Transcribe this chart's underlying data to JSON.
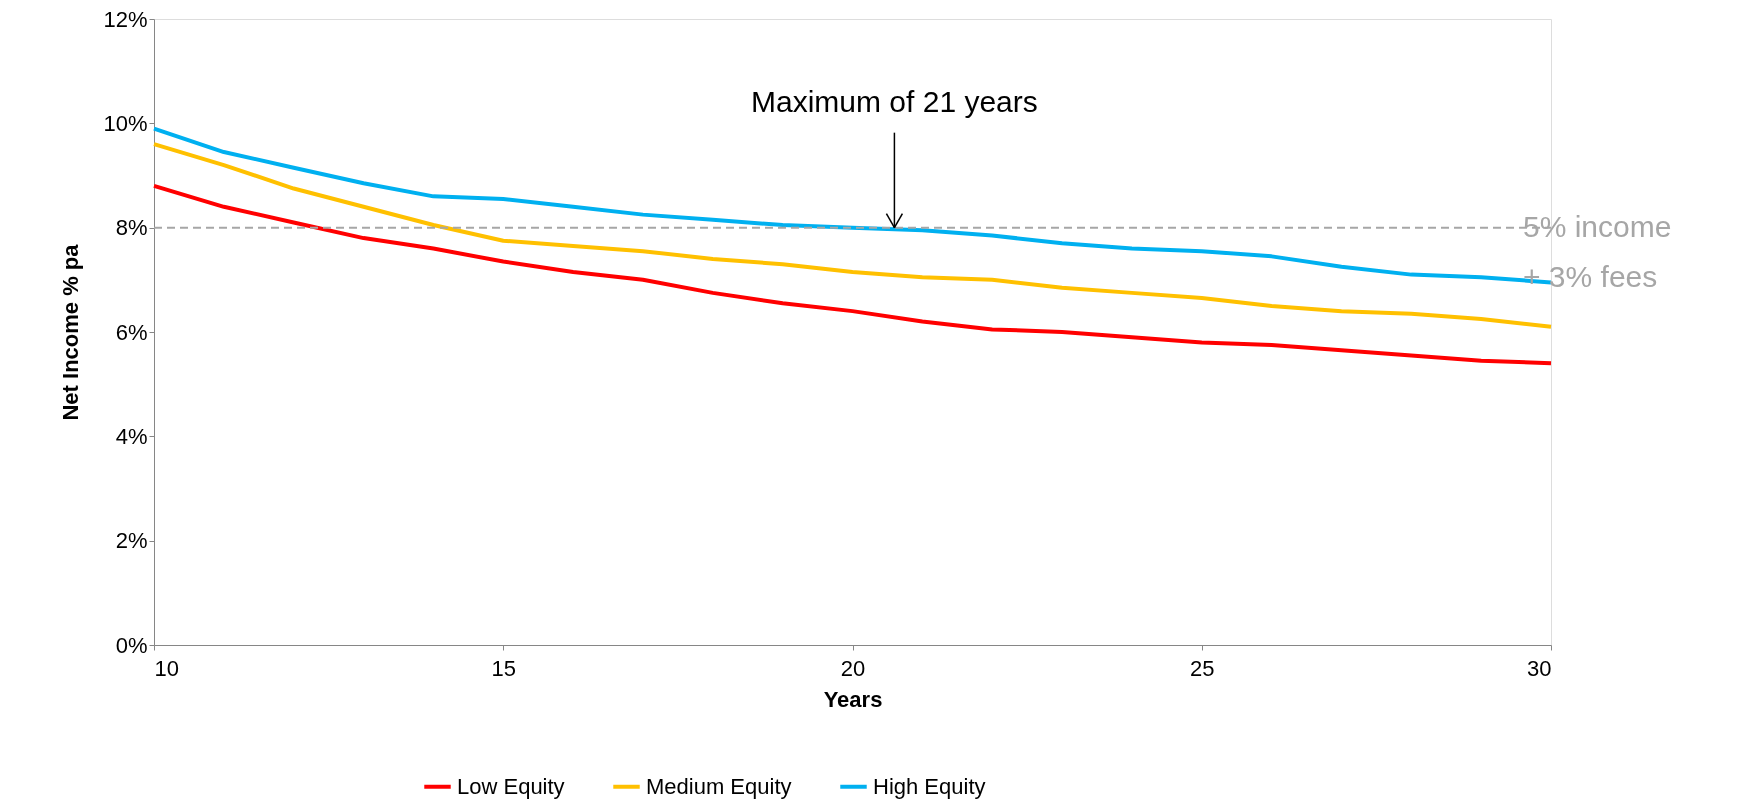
{
  "chart_data": {
    "type": "line",
    "xlabel": "Years",
    "ylabel": "Net Income % pa",
    "x": [
      10,
      11,
      12,
      13,
      14,
      15,
      16,
      17,
      18,
      19,
      20,
      21,
      22,
      23,
      24,
      25,
      26,
      27,
      28,
      29,
      30
    ],
    "series": [
      {
        "name": "Low Equity",
        "color": "#ff0000",
        "values": [
          8.8,
          8.4,
          8.1,
          7.8,
          7.6,
          7.35,
          7.15,
          7.0,
          6.75,
          6.55,
          6.4,
          6.2,
          6.05,
          6.0,
          5.9,
          5.8,
          5.75,
          5.65,
          5.55,
          5.45,
          5.4
        ]
      },
      {
        "name": "Medium Equity",
        "color": "#ffc000",
        "values": [
          9.6,
          9.2,
          8.75,
          8.4,
          8.05,
          7.75,
          7.65,
          7.55,
          7.4,
          7.3,
          7.15,
          7.05,
          7.0,
          6.85,
          6.75,
          6.65,
          6.5,
          6.4,
          6.35,
          6.25,
          6.1
        ]
      },
      {
        "name": "High Equity",
        "color": "#00b0f0",
        "values": [
          9.9,
          9.45,
          9.15,
          8.85,
          8.6,
          8.55,
          8.4,
          8.25,
          8.15,
          8.05,
          8.0,
          7.95,
          7.85,
          7.7,
          7.6,
          7.55,
          7.45,
          7.25,
          7.1,
          7.05,
          6.95
        ]
      }
    ],
    "xlim": [
      10,
      30
    ],
    "xticks": [
      10,
      15,
      20,
      25,
      30
    ],
    "ylim": [
      0,
      12
    ],
    "yticks": [
      {
        "value": 0,
        "label": "0%"
      },
      {
        "value": 2,
        "label": "2%"
      },
      {
        "value": 4,
        "label": "4%"
      },
      {
        "value": 6,
        "label": "6%"
      },
      {
        "value": 8,
        "label": "8%"
      },
      {
        "value": 10,
        "label": "10%"
      },
      {
        "value": 12,
        "label": "12%"
      }
    ],
    "ref_lines": [
      {
        "axis": "y",
        "value": 8,
        "label": "5% income\n+ 3% fees",
        "color": "#a6a6a6",
        "line_style": "dashed"
      }
    ],
    "annotations": [
      {
        "text": "Maximum of 21 years",
        "x": 20.6,
        "y": 8
      }
    ],
    "grid": false,
    "legend": "bottom",
    "marker": "none",
    "line_style": "solid"
  }
}
